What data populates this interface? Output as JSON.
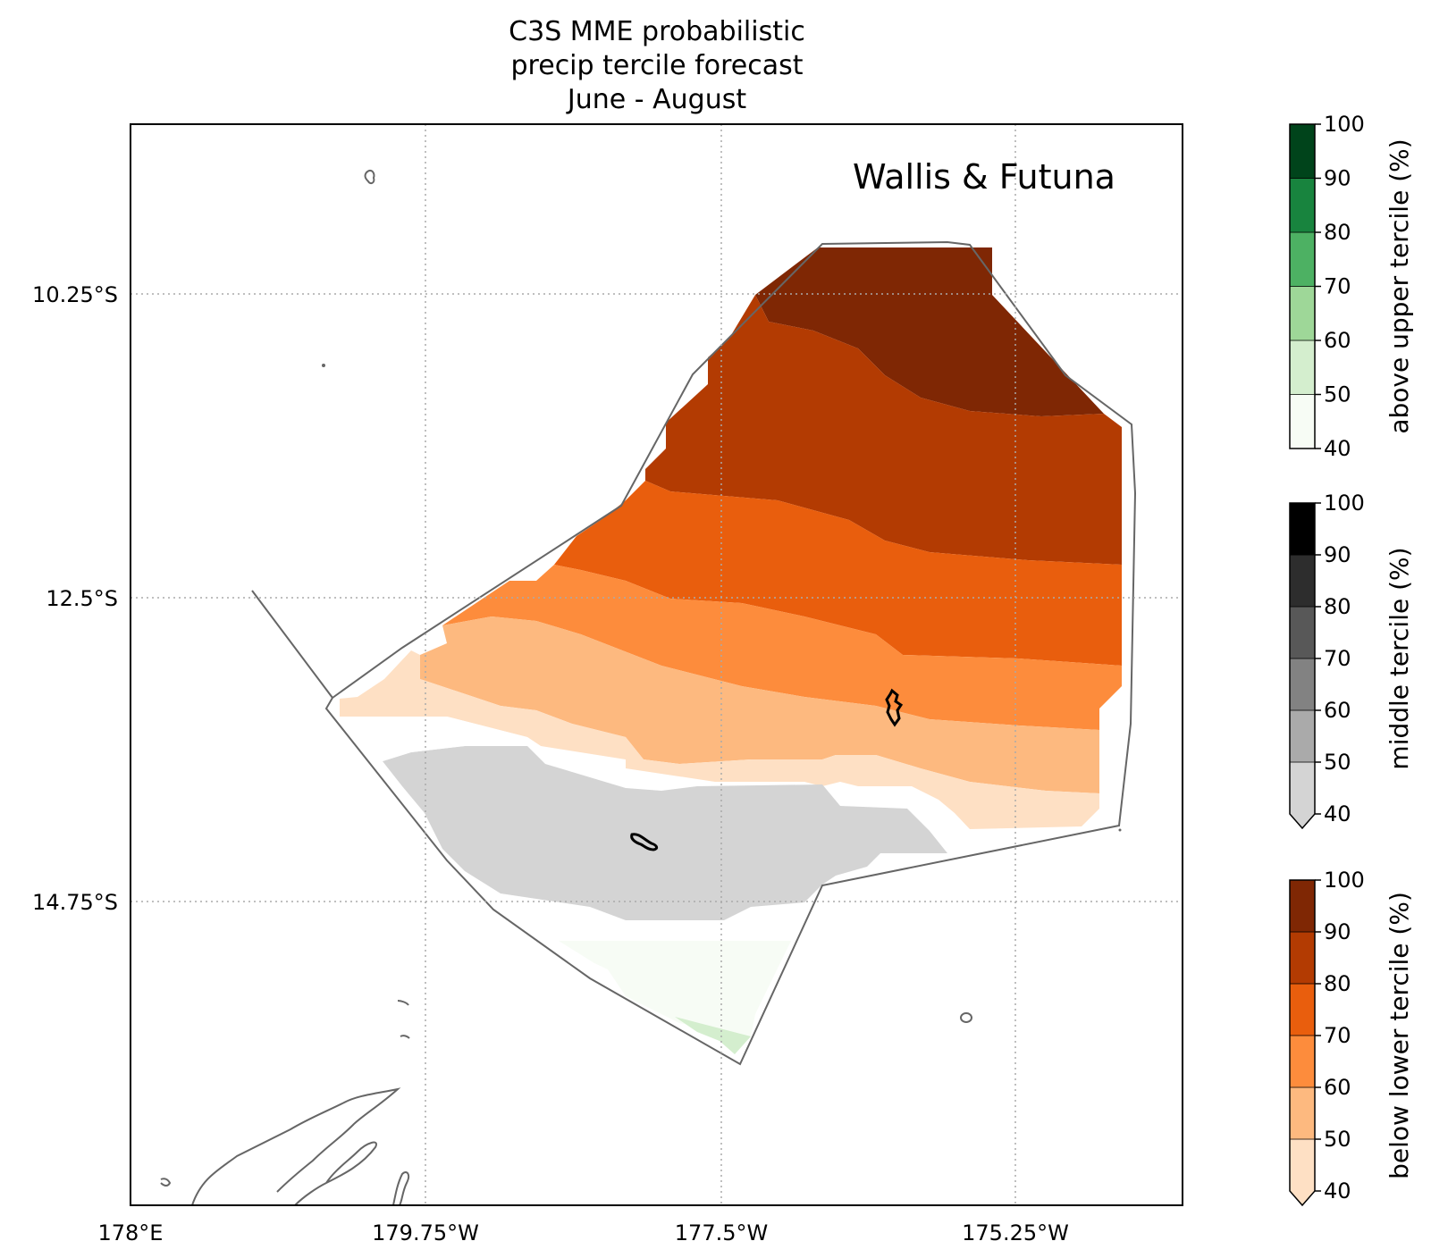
{
  "title": [
    "C3S MME probabilistic",
    "precip tercile forecast",
    "June - August"
  ],
  "region_label": "Wallis & Futuna",
  "map": {
    "x_ticks": [
      "178°E",
      "179.75°W",
      "177.5°W",
      "175.25°W"
    ],
    "y_ticks": [
      "10.25°S",
      "12.5°S",
      "14.75°S"
    ],
    "gridlines": "dotted",
    "border_color": "#666666"
  },
  "colorbars": [
    {
      "label": "above upper tercile (%)",
      "ticks": [
        "40",
        "50",
        "60",
        "70",
        "80",
        "90",
        "100"
      ],
      "colors": [
        "#f7fcf5",
        "#d4eece",
        "#9ed798",
        "#4db163",
        "#18843e",
        "#00441b"
      ],
      "extend_min": false
    },
    {
      "label": "middle tercile (%)",
      "ticks": [
        "40",
        "50",
        "60",
        "70",
        "80",
        "90",
        "100"
      ],
      "colors": [
        "#d4d4d4",
        "#aaaaaa",
        "#828282",
        "#585858",
        "#2d2d2d",
        "#000000"
      ],
      "extend_min": true
    },
    {
      "label": "below lower tercile (%)",
      "ticks": [
        "40",
        "50",
        "60",
        "70",
        "80",
        "90",
        "100"
      ],
      "colors": [
        "#fee0c4",
        "#fdb97f",
        "#fd8c3c",
        "#e95e0d",
        "#b33b02",
        "#7f2704"
      ],
      "extend_min": true
    }
  ]
}
